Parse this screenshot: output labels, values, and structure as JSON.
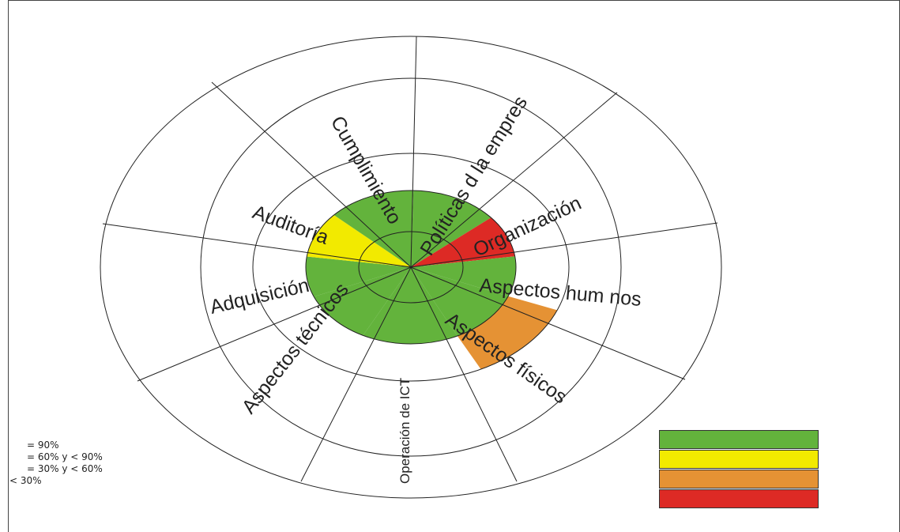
{
  "chart_data": {
    "type": "polar-area",
    "ring_count": 5,
    "sectors": [
      {
        "label": "Políticas d  la empres",
        "level": 2,
        "color": "#63b33c"
      },
      {
        "label": "Organización",
        "level": 2,
        "color": "#dd2a25"
      },
      {
        "label": "Aspectos hum  nos",
        "level": 2,
        "color": "#63b33c"
      },
      {
        "label": "Aspectos físicos",
        "level": 2,
        "color": "#63b33c"
      },
      {
        "label": "Aspectos físicos",
        "level": 3,
        "color": "#e59234"
      },
      {
        "label": "Operación de ICT",
        "level": 2,
        "color": "#63b33c"
      },
      {
        "label": "Aspectos técnicos",
        "level": 2,
        "color": "#63b33c"
      },
      {
        "label": "Adquisición",
        "level": 2,
        "color": "#63b33c"
      },
      {
        "label": "Auditoría",
        "level": 2,
        "color": "#f2ea00"
      },
      {
        "label": "Cumplimiento",
        "level": 2,
        "color": "#63b33c"
      }
    ],
    "legend": [
      {
        "text": "= 90%",
        "color": "#63b33c"
      },
      {
        "text": "= 60% y < 90%",
        "color": "#f2ea00"
      },
      {
        "text": "= 30% y < 60%",
        "color": "#e59234"
      },
      {
        "text": "< 30%",
        "color": "#dd2a25"
      }
    ]
  }
}
